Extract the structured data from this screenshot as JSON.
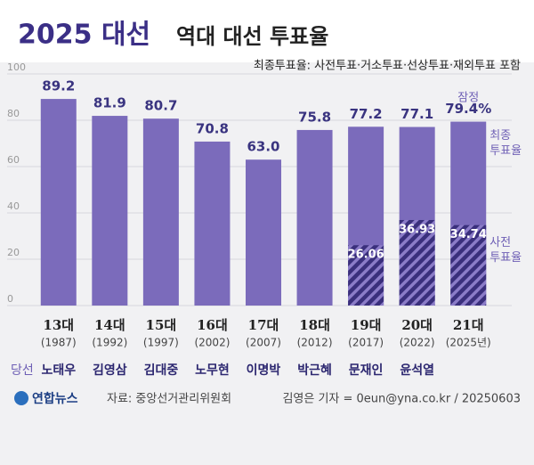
{
  "chart_data": {
    "type": "bar",
    "title_highlight": "2025 대선",
    "title": "역대 대선 투표율",
    "subtitle": "최종투표율: 사전투표·거소투표·선상투표·재외투표 포함",
    "categories": [
      "13대",
      "14대",
      "15대",
      "16대",
      "17대",
      "18대",
      "19대",
      "20대",
      "21대"
    ],
    "category_years": [
      "(1987)",
      "(1992)",
      "(1997)",
      "(2002)",
      "(2007)",
      "(2012)",
      "(2017)",
      "(2022)",
      "(2025년)"
    ],
    "winners_label": "당선",
    "winners": [
      "노태우",
      "김영삼",
      "김대중",
      "노무현",
      "이명박",
      "박근혜",
      "문재인",
      "윤석열",
      null
    ],
    "series": [
      {
        "name": "최종 투표율",
        "color": "#7b6bbb",
        "values": [
          89.2,
          81.9,
          80.7,
          70.8,
          63.0,
          75.8,
          77.2,
          77.1,
          79.4
        ],
        "value_labels": [
          "89.2",
          "81.9",
          "80.7",
          "70.8",
          "63.0",
          "75.8",
          "77.2",
          "77.1",
          "79.4%"
        ]
      },
      {
        "name": "사전 투표율",
        "color": "#3a2f7c",
        "hatched": true,
        "values": [
          null,
          null,
          null,
          null,
          null,
          null,
          26.06,
          36.93,
          34.74
        ]
      }
    ],
    "annotation": "잠정",
    "ylim": [
      0,
      100
    ],
    "yticks": [
      0,
      20,
      40,
      60,
      80,
      100
    ],
    "grid": true,
    "logo": "연합뉴스",
    "source": "자료: 중앙선거관리위원회",
    "credit": "김영은 기자 = 0eun@yna.co.kr / 20250603"
  }
}
